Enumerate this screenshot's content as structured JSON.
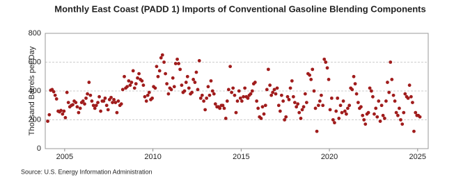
{
  "chart_data": {
    "type": "scatter",
    "title": "Monthly East Coast (PADD 1) Imports of Conventional Gasoline Blending Components",
    "y_label": "Thousand Barrels per Day",
    "source": "Source: U.S. Energy Information Administration",
    "color": "#a01c1c",
    "grid": true,
    "xlim": [
      2003.9,
      2025.6
    ],
    "xticks": [
      2005,
      2010,
      2015,
      2020,
      2025
    ],
    "ylim": [
      0,
      800
    ],
    "yticks": [
      0,
      200,
      400,
      600,
      800
    ],
    "x": [
      2004.04,
      2004.13,
      2004.21,
      2004.29,
      2004.38,
      2004.46,
      2004.54,
      2004.63,
      2004.71,
      2004.79,
      2004.88,
      2004.96,
      2005.04,
      2005.13,
      2005.21,
      2005.29,
      2005.38,
      2005.46,
      2005.54,
      2005.63,
      2005.71,
      2005.79,
      2005.88,
      2005.96,
      2006.04,
      2006.13,
      2006.21,
      2006.29,
      2006.38,
      2006.46,
      2006.54,
      2006.63,
      2006.71,
      2006.79,
      2006.88,
      2006.96,
      2007.04,
      2007.13,
      2007.21,
      2007.29,
      2007.38,
      2007.46,
      2007.54,
      2007.63,
      2007.71,
      2007.79,
      2007.88,
      2007.96,
      2008.04,
      2008.13,
      2008.21,
      2008.29,
      2008.38,
      2008.46,
      2008.54,
      2008.63,
      2008.71,
      2008.79,
      2008.88,
      2008.96,
      2009.04,
      2009.13,
      2009.21,
      2009.29,
      2009.38,
      2009.46,
      2009.54,
      2009.63,
      2009.71,
      2009.79,
      2009.88,
      2009.96,
      2010.04,
      2010.13,
      2010.21,
      2010.29,
      2010.38,
      2010.46,
      2010.54,
      2010.63,
      2010.71,
      2010.79,
      2010.88,
      2010.96,
      2011.04,
      2011.13,
      2011.21,
      2011.29,
      2011.38,
      2011.46,
      2011.54,
      2011.63,
      2011.71,
      2011.79,
      2011.88,
      2011.96,
      2012.04,
      2012.13,
      2012.21,
      2012.29,
      2012.38,
      2012.46,
      2012.54,
      2012.63,
      2012.71,
      2012.79,
      2012.88,
      2012.96,
      2013.04,
      2013.13,
      2013.21,
      2013.29,
      2013.38,
      2013.46,
      2013.54,
      2013.63,
      2013.71,
      2013.79,
      2013.88,
      2013.96,
      2014.04,
      2014.13,
      2014.21,
      2014.29,
      2014.38,
      2014.46,
      2014.54,
      2014.63,
      2014.71,
      2014.79,
      2014.88,
      2014.96,
      2015.04,
      2015.13,
      2015.21,
      2015.29,
      2015.38,
      2015.46,
      2015.54,
      2015.63,
      2015.71,
      2015.79,
      2015.88,
      2015.96,
      2016.04,
      2016.13,
      2016.21,
      2016.29,
      2016.38,
      2016.46,
      2016.54,
      2016.63,
      2016.71,
      2016.79,
      2016.88,
      2016.96,
      2017.04,
      2017.13,
      2017.21,
      2017.29,
      2017.38,
      2017.46,
      2017.54,
      2017.63,
      2017.71,
      2017.79,
      2017.88,
      2017.96,
      2018.04,
      2018.13,
      2018.21,
      2018.29,
      2018.38,
      2018.46,
      2018.54,
      2018.63,
      2018.71,
      2018.79,
      2018.88,
      2018.96,
      2019.04,
      2019.13,
      2019.21,
      2019.29,
      2019.38,
      2019.46,
      2019.54,
      2019.63,
      2019.71,
      2019.79,
      2019.88,
      2019.96,
      2020.04,
      2020.13,
      2020.21,
      2020.29,
      2020.38,
      2020.46,
      2020.54,
      2020.63,
      2020.71,
      2020.79,
      2020.88,
      2020.96,
      2021.04,
      2021.13,
      2021.21,
      2021.29,
      2021.38,
      2021.46,
      2021.54,
      2021.63,
      2021.71,
      2021.79,
      2021.88,
      2021.96,
      2022.04,
      2022.13,
      2022.21,
      2022.29,
      2022.38,
      2022.46,
      2022.54,
      2022.63,
      2022.71,
      2022.79,
      2022.88,
      2022.96,
      2023.04,
      2023.13,
      2023.21,
      2023.29,
      2023.38,
      2023.46,
      2023.54,
      2023.63,
      2023.71,
      2023.79,
      2023.88,
      2023.96,
      2024.04,
      2024.13,
      2024.21,
      2024.29,
      2024.38,
      2024.46,
      2024.54,
      2024.63,
      2024.71,
      2024.79,
      2024.88,
      2024.96,
      2025.04,
      2025.13
    ],
    "values": [
      190,
      235,
      405,
      410,
      395,
      370,
      345,
      260,
      255,
      265,
      240,
      260,
      215,
      390,
      320,
      290,
      300,
      305,
      330,
      320,
      290,
      250,
      280,
      320,
      330,
      310,
      350,
      380,
      460,
      370,
      330,
      300,
      280,
      300,
      320,
      360,
      260,
      330,
      330,
      350,
      300,
      270,
      340,
      355,
      320,
      340,
      320,
      250,
      330,
      300,
      310,
      410,
      500,
      420,
      430,
      470,
      440,
      460,
      540,
      420,
      450,
      490,
      520,
      480,
      470,
      440,
      360,
      330,
      370,
      390,
      340,
      350,
      430,
      420,
      570,
      500,
      540,
      630,
      650,
      600,
      520,
      450,
      380,
      420,
      410,
      490,
      430,
      590,
      620,
      590,
      550,
      440,
      390,
      400,
      460,
      500,
      420,
      380,
      390,
      480,
      460,
      530,
      410,
      610,
      350,
      370,
      330,
      270,
      350,
      430,
      370,
      470,
      400,
      380,
      310,
      290,
      290,
      280,
      300,
      300,
      280,
      210,
      330,
      410,
      570,
      390,
      420,
      370,
      250,
      330,
      400,
      350,
      330,
      360,
      420,
      360,
      350,
      370,
      380,
      400,
      450,
      460,
      330,
      280,
      220,
      210,
      290,
      240,
      300,
      410,
      550,
      440,
      370,
      390,
      410,
      380,
      420,
      300,
      260,
      370,
      330,
      200,
      220,
      360,
      340,
      420,
      470,
      360,
      320,
      290,
      310,
      250,
      210,
      270,
      290,
      380,
      320,
      520,
      510,
      480,
      550,
      400,
      280,
      120,
      300,
      330,
      370,
      300,
      620,
      600,
      560,
      480,
      270,
      350,
      200,
      180,
      260,
      350,
      210,
      300,
      250,
      330,
      260,
      240,
      280,
      300,
      420,
      410,
      500,
      450,
      380,
      320,
      280,
      290,
      230,
      200,
      170,
      240,
      250,
      420,
      400,
      360,
      240,
      280,
      220,
      330,
      190,
      300,
      230,
      210,
      330,
      460,
      390,
      600,
      480,
      370,
      330,
      250,
      230,
      280,
      200,
      170,
      250,
      380,
      360,
      350,
      440,
      360,
      320,
      120,
      250,
      230,
      230,
      220
    ]
  }
}
